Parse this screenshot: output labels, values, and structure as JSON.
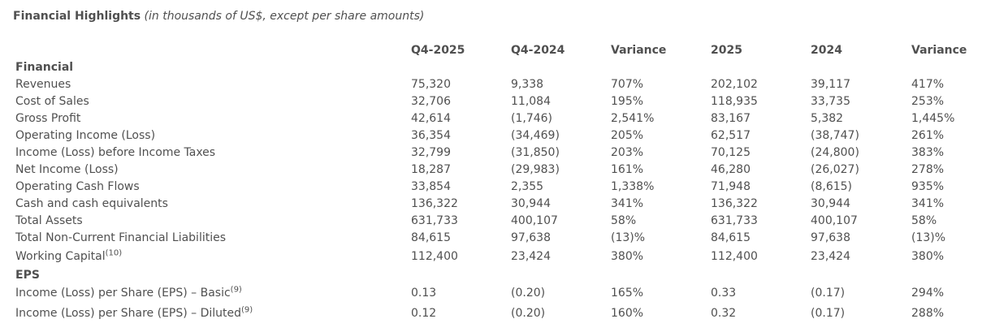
{
  "title": {
    "main": "Financial Highlights",
    "sub": "(in thousands of US$, except per share amounts)"
  },
  "headers": [
    "Q4-2025",
    "Q4-2024",
    "Variance",
    "2025",
    "2024",
    "Variance"
  ],
  "sections": [
    {
      "name": "Financial",
      "rows": [
        {
          "label": "Revenues",
          "sup": "",
          "values": [
            "75,320",
            "9,338",
            "707%",
            "202,102",
            "39,117",
            "417%"
          ]
        },
        {
          "label": "Cost of Sales",
          "sup": "",
          "values": [
            "32,706",
            "11,084",
            "195%",
            "118,935",
            "33,735",
            "253%"
          ]
        },
        {
          "label": "Gross Profit",
          "sup": "",
          "values": [
            "42,614",
            "(1,746)",
            "2,541%",
            "83,167",
            "5,382",
            "1,445%"
          ]
        },
        {
          "label": "Operating Income (Loss)",
          "sup": "",
          "values": [
            "36,354",
            "(34,469)",
            "205%",
            "62,517",
            "(38,747)",
            "261%"
          ]
        },
        {
          "label": "Income (Loss) before Income Taxes",
          "sup": "",
          "values": [
            "32,799",
            "(31,850)",
            "203%",
            "70,125",
            "(24,800)",
            "383%"
          ]
        },
        {
          "label": "Net Income (Loss)",
          "sup": "",
          "values": [
            "18,287",
            "(29,983)",
            "161%",
            "46,280",
            "(26,027)",
            "278%"
          ]
        },
        {
          "label": "Operating Cash Flows",
          "sup": "",
          "values": [
            "33,854",
            "2,355",
            "1,338%",
            "71,948",
            "(8,615)",
            "935%"
          ]
        },
        {
          "label": "Cash and cash equivalents",
          "sup": "",
          "values": [
            "136,322",
            "30,944",
            "341%",
            "136,322",
            "30,944",
            "341%"
          ]
        },
        {
          "label": "Total Assets",
          "sup": "",
          "values": [
            "631,733",
            "400,107",
            "58%",
            "631,733",
            "400,107",
            "58%"
          ]
        },
        {
          "label": "Total Non-Current Financial Liabilities",
          "sup": "",
          "values": [
            "84,615",
            "97,638",
            "(13)%",
            "84,615",
            "97,638",
            "(13)%"
          ]
        },
        {
          "label": "Working Capital",
          "sup": "(10)",
          "values": [
            "112,400",
            "23,424",
            "380%",
            "112,400",
            "23,424",
            "380%"
          ]
        }
      ]
    },
    {
      "name": "EPS",
      "rows": [
        {
          "label": "Income (Loss) per Share (EPS) – Basic",
          "sup": "(9)",
          "values": [
            "0.13",
            "(0.20)",
            "165%",
            "0.33",
            "(0.17)",
            "294%"
          ]
        },
        {
          "label": "Income (Loss) per Share (EPS) – Diluted",
          "sup": "(9)",
          "values": [
            "0.12",
            "(0.20)",
            "160%",
            "0.32",
            "(0.17)",
            "288%"
          ]
        }
      ]
    }
  ]
}
